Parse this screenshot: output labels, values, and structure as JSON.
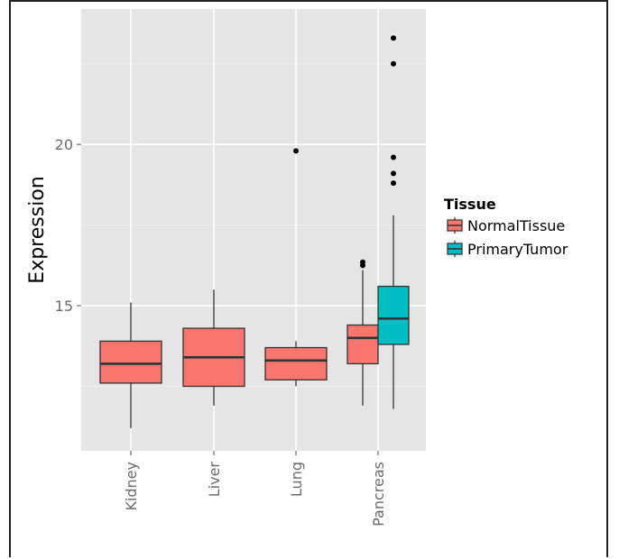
{
  "chart_data": {
    "type": "boxplot",
    "ylabel": "Expression",
    "ylim": [
      10.5,
      24.2
    ],
    "yticks": [
      15,
      20
    ],
    "grid": true,
    "categories": [
      "Kidney",
      "Liver",
      "Lung",
      "Pancreas"
    ],
    "legend": {
      "title": "Tissue",
      "position": "right",
      "entries": [
        {
          "name": "NormalTissue",
          "color": "#f8766d"
        },
        {
          "name": "PrimaryTumor",
          "color": "#00bfc4"
        }
      ]
    },
    "series": [
      {
        "name": "NormalTissue",
        "color": "#f8766d",
        "boxes": [
          {
            "category": "Kidney",
            "min": 11.2,
            "q1": 12.6,
            "median": 13.2,
            "q3": 13.9,
            "max": 15.1,
            "outliers": []
          },
          {
            "category": "Liver",
            "min": 11.9,
            "q1": 12.5,
            "median": 13.4,
            "q3": 14.3,
            "max": 15.5,
            "outliers": []
          },
          {
            "category": "Lung",
            "min": 12.5,
            "q1": 12.7,
            "median": 13.3,
            "q3": 13.7,
            "max": 13.9,
            "outliers": [
              19.8
            ]
          },
          {
            "category": "Pancreas",
            "min": 11.9,
            "q1": 13.2,
            "median": 14.0,
            "q3": 14.4,
            "max": 16.1,
            "outliers": [
              16.25,
              16.35
            ]
          }
        ]
      },
      {
        "name": "PrimaryTumor",
        "color": "#00bfc4",
        "boxes": [
          {
            "category": "Pancreas",
            "min": 11.8,
            "q1": 13.8,
            "median": 14.6,
            "q3": 15.6,
            "max": 17.8,
            "outliers": [
              18.8,
              19.1,
              19.6,
              22.5,
              23.3
            ]
          }
        ]
      }
    ]
  }
}
